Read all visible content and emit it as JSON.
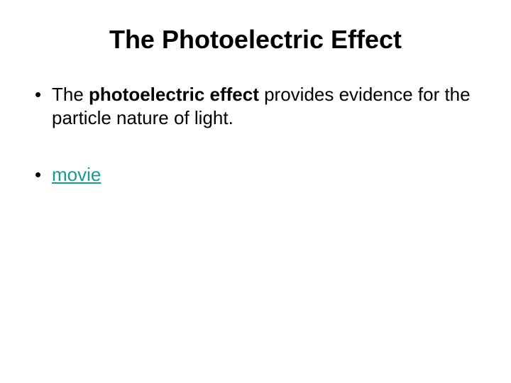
{
  "title": "The Photoelectric Effect",
  "bullets": [
    {
      "prefix": "The ",
      "bold": "photoelectric effect",
      "suffix": " provides evidence for the particle nature of light."
    }
  ],
  "link_text": "movie",
  "link_color": "#1a9999",
  "background_color": "#ffffff",
  "text_color": "#000000",
  "title_fontsize": 36,
  "body_fontsize": 26
}
